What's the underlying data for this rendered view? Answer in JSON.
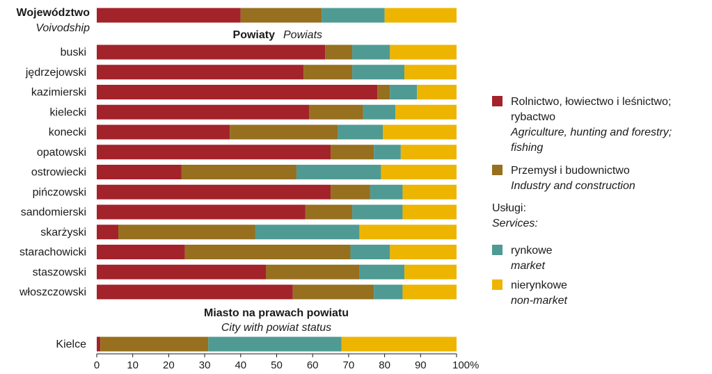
{
  "chart_data": {
    "type": "bar",
    "stacked": true,
    "orientation": "horizontal",
    "x_ticks": [
      "0",
      "10",
      "20",
      "30",
      "40",
      "50",
      "60",
      "70",
      "80",
      "90",
      "100%"
    ],
    "xlim": [
      0,
      100
    ],
    "legend_position": "right",
    "series": [
      {
        "name": "Rolnictwo, łowiectwo i leśnictwo; rybactwo",
        "name_lines": [
          "Rolnictwo, łowiectwo i leśnictwo;",
          "rybactwo"
        ],
        "name_en_lines": [
          "Agriculture, hunting and forestry;",
          "fishing"
        ],
        "color": "#A3232B"
      },
      {
        "name": "Przemysł i budownictwo",
        "name_lines": [
          "Przemysł i budownictwo"
        ],
        "name_en_lines": [
          "Industry and construction"
        ],
        "color": "#96701F"
      },
      {
        "name": "rynkowe",
        "name_lines": [
          "rynkowe"
        ],
        "name_en_lines": [
          "market"
        ],
        "color": "#4F9B94"
      },
      {
        "name": "nierynkowe",
        "name_lines": [
          "nierynkowe"
        ],
        "name_en_lines": [
          "non-market"
        ],
        "color": "#EEB500"
      }
    ],
    "services_heading": {
      "pl": "Usługi:",
      "en": "Services:"
    },
    "voivodship": {
      "label_pl": "Województwo",
      "label_en": "Voivodship",
      "values": [
        40,
        22.5,
        17.5,
        20
      ]
    },
    "powiats_heading": {
      "pl": "Powiaty",
      "en": "Powiats"
    },
    "powiats": [
      {
        "label": "buski",
        "values": [
          63.5,
          7.5,
          10.5,
          18.5
        ]
      },
      {
        "label": "jędrzejowski",
        "values": [
          57.5,
          13.5,
          14.5,
          14.5
        ]
      },
      {
        "label": "kazimierski",
        "values": [
          78,
          3.5,
          7.5,
          11
        ]
      },
      {
        "label": "kielecki",
        "values": [
          59,
          15,
          9,
          17
        ]
      },
      {
        "label": "konecki",
        "values": [
          37,
          30,
          12.5,
          20.5
        ]
      },
      {
        "label": "opatowski",
        "values": [
          65,
          12,
          7.5,
          15.5
        ]
      },
      {
        "label": "ostrowiecki",
        "values": [
          23.5,
          32,
          23.5,
          21
        ]
      },
      {
        "label": "pińczowski",
        "values": [
          65,
          11,
          9,
          15
        ]
      },
      {
        "label": "sandomierski",
        "values": [
          58,
          13,
          14,
          15
        ]
      },
      {
        "label": "skarżyski",
        "values": [
          6,
          38,
          29,
          27
        ]
      },
      {
        "label": "starachowicki",
        "values": [
          24.5,
          46,
          11,
          18.5
        ]
      },
      {
        "label": "staszowski",
        "values": [
          47,
          26,
          12.5,
          14.5
        ]
      },
      {
        "label": "włoszczowski",
        "values": [
          54.5,
          22.5,
          8,
          15
        ]
      }
    ],
    "city_heading": {
      "pl": "Miasto na prawach powiatu",
      "en": "City with powiat status"
    },
    "city": {
      "label": "Kielce",
      "values": [
        1,
        30,
        37,
        32
      ]
    }
  }
}
